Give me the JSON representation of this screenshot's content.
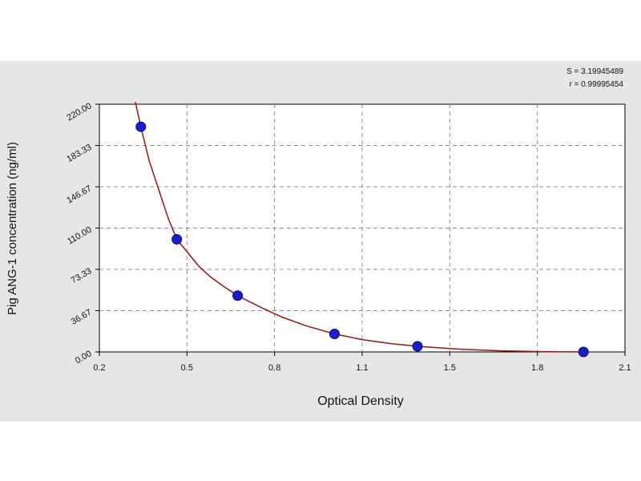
{
  "chart_data": {
    "type": "scatter",
    "title": "",
    "xlabel": "Optical Density",
    "ylabel": "Pig ANG-1 concentration (ng/ml)",
    "xlim": [
      0.2,
      2.1
    ],
    "ylim": [
      0,
      220
    ],
    "x_ticks": [
      "0.2",
      "0.5",
      "0.8",
      "1.1",
      "1.5",
      "1.8",
      "2.1"
    ],
    "y_ticks": [
      "0.00",
      "36.67",
      "73.33",
      "110.00",
      "146.67",
      "183.33",
      "220.00"
    ],
    "grid": true,
    "points": [
      {
        "x": 0.35,
        "y": 200
      },
      {
        "x": 0.48,
        "y": 100
      },
      {
        "x": 0.7,
        "y": 50
      },
      {
        "x": 1.05,
        "y": 16
      },
      {
        "x": 1.35,
        "y": 5
      },
      {
        "x": 1.95,
        "y": 0
      }
    ],
    "curve": [
      {
        "x": 0.33,
        "y": 225
      },
      {
        "x": 0.35,
        "y": 200
      },
      {
        "x": 0.38,
        "y": 170
      },
      {
        "x": 0.42,
        "y": 140
      },
      {
        "x": 0.45,
        "y": 118
      },
      {
        "x": 0.48,
        "y": 100
      },
      {
        "x": 0.52,
        "y": 88
      },
      {
        "x": 0.56,
        "y": 76
      },
      {
        "x": 0.6,
        "y": 67
      },
      {
        "x": 0.65,
        "y": 58
      },
      {
        "x": 0.7,
        "y": 50
      },
      {
        "x": 0.78,
        "y": 40
      },
      {
        "x": 0.86,
        "y": 31
      },
      {
        "x": 0.95,
        "y": 23
      },
      {
        "x": 1.05,
        "y": 16
      },
      {
        "x": 1.15,
        "y": 11
      },
      {
        "x": 1.25,
        "y": 7.5
      },
      {
        "x": 1.35,
        "y": 5
      },
      {
        "x": 1.5,
        "y": 2.5
      },
      {
        "x": 1.65,
        "y": 1
      },
      {
        "x": 1.8,
        "y": 0.3
      },
      {
        "x": 1.95,
        "y": 0
      }
    ],
    "colors": {
      "points": "#1e1ec8",
      "curve": "#8b1a1a",
      "grid": "#8c8c8c",
      "plot_bg": "#ffffff",
      "panel_bg": "#e6e6e6"
    },
    "stats": [
      "S = 3.19945489",
      "r = 0.99995454"
    ]
  }
}
